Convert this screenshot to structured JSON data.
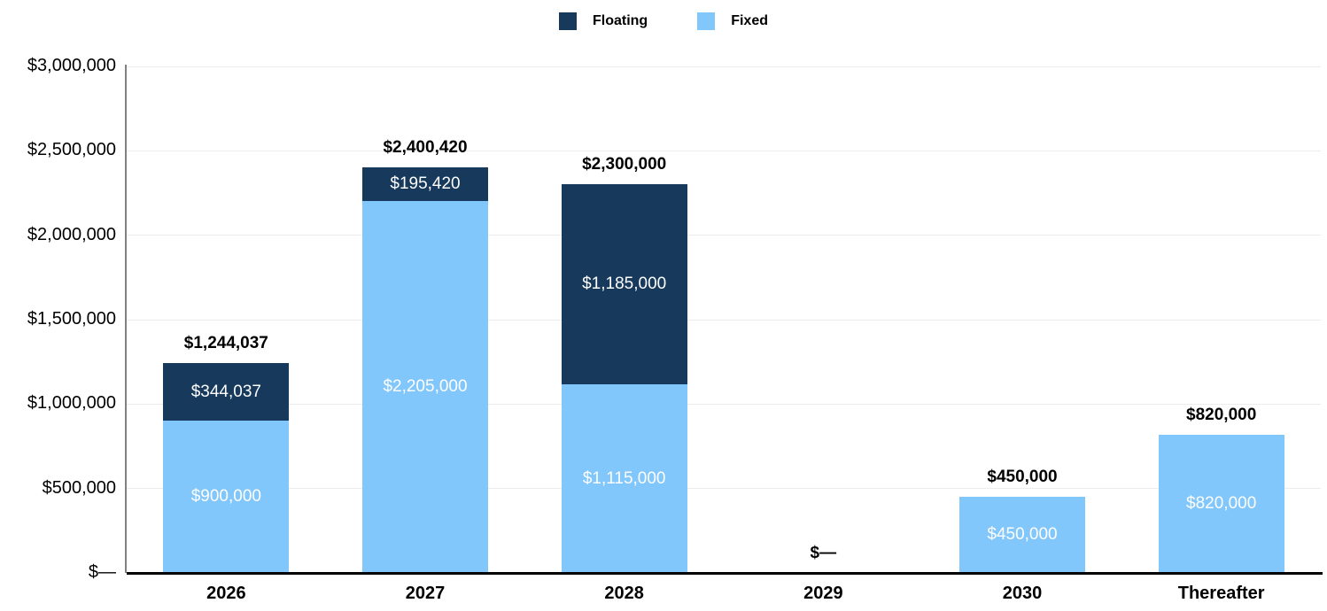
{
  "colors": {
    "floating": "#17395C",
    "fixed": "#82C7FB",
    "gridline": "#ECECEC",
    "axis_line": "#808080",
    "baseline": "#000000",
    "segment_text": "#FDFDFD"
  },
  "legend": {
    "items": [
      {
        "label": "Floating",
        "color": "#17395C"
      },
      {
        "label": "Fixed",
        "color": "#82C7FB"
      }
    ]
  },
  "chart_data": {
    "type": "bar",
    "stacked": true,
    "title": "",
    "xlabel": "",
    "ylabel": "",
    "categories": [
      "2026",
      "2027",
      "2028",
      "2029",
      "2030",
      "Thereafter"
    ],
    "series": [
      {
        "name": "Fixed",
        "color": "#82C7FB",
        "values": [
          900000,
          2205000,
          1115000,
          0,
          450000,
          820000
        ],
        "labels": [
          "$900,000",
          "$2,205,000",
          "$1,115,000",
          "",
          "$450,000",
          "$820,000"
        ]
      },
      {
        "name": "Floating",
        "color": "#17395C",
        "values": [
          344037,
          195420,
          1185000,
          0,
          0,
          0
        ],
        "labels": [
          "$344,037",
          "$195,420",
          "$1,185,000",
          "",
          "",
          ""
        ]
      }
    ],
    "totals": [
      1244037,
      2400420,
      2300000,
      0,
      450000,
      820000
    ],
    "total_labels": [
      "$1,244,037",
      "$2,400,420",
      "$2,300,000",
      "$—",
      "$450,000",
      "$820,000"
    ],
    "y_ticks": [
      {
        "value": 0,
        "label": "$—"
      },
      {
        "value": 500000,
        "label": "$500,000"
      },
      {
        "value": 1000000,
        "label": "$1,000,000"
      },
      {
        "value": 1500000,
        "label": "$1,500,000"
      },
      {
        "value": 2000000,
        "label": "$2,000,000"
      },
      {
        "value": 2500000,
        "label": "$2,500,000"
      },
      {
        "value": 3000000,
        "label": "$3,000,000"
      }
    ],
    "ylim": [
      0,
      3000000
    ],
    "grid": true,
    "legend_position": "top-center"
  }
}
